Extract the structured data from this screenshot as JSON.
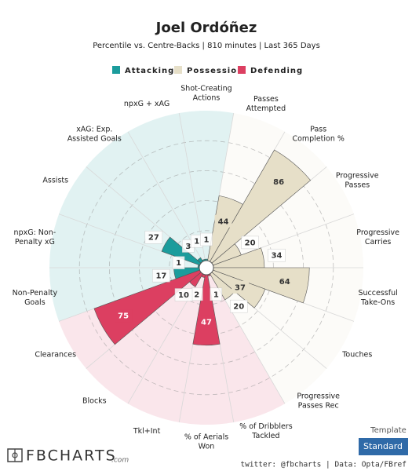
{
  "chart_data": {
    "type": "polar_bar",
    "title": "Joel Ordóñez",
    "subtitle": "Percentile vs. Centre-Backs | 810 minutes | Last 365 Days",
    "rlim": [
      0,
      100
    ],
    "rticks": [
      20,
      40,
      60,
      80
    ],
    "series": [
      {
        "name": "Attacking",
        "color": "#1b9c9c",
        "categories": [
          [
            "Non-Penalty",
            "Goals"
          ],
          [
            "npxG: Non-",
            "Penalty xG"
          ],
          [
            "Assists"
          ],
          [
            "xAG: Exp.",
            "Assisted Goals"
          ],
          [
            "npxG + xAG"
          ],
          [
            "Shot-Creating",
            "Actions"
          ]
        ],
        "values": [
          17,
          1,
          27,
          3,
          1,
          1
        ]
      },
      {
        "name": "Possession",
        "color": "#e6dfc8",
        "categories": [
          [
            "Passes",
            "Attempted"
          ],
          [
            "Pass",
            "Completion %"
          ],
          [
            "Progressive",
            "Passes"
          ],
          [
            "Progressive",
            "Carries"
          ],
          [
            "Successful",
            "Take-Ons"
          ],
          [
            "Touches"
          ],
          [
            "Progressive",
            "Passes Rec"
          ]
        ],
        "values": [
          44,
          86,
          20,
          34,
          64,
          37,
          20
        ]
      },
      {
        "name": "Defending",
        "color": "#dc3f61",
        "categories": [
          [
            "% of Dribblers",
            "Tackled"
          ],
          [
            "% of Aerials",
            "Won"
          ],
          [
            "Tkl+Int"
          ],
          [
            "Blocks"
          ],
          [
            "Clearances"
          ]
        ],
        "values": [
          1,
          47,
          2,
          10,
          75
        ]
      }
    ]
  },
  "footer": {
    "template_label": "Template",
    "template": "Standard",
    "logo": "FBCHARTS",
    "logo_suffix": ".com",
    "credit": "twitter: @fbcharts | Data: Opta/FBref"
  }
}
